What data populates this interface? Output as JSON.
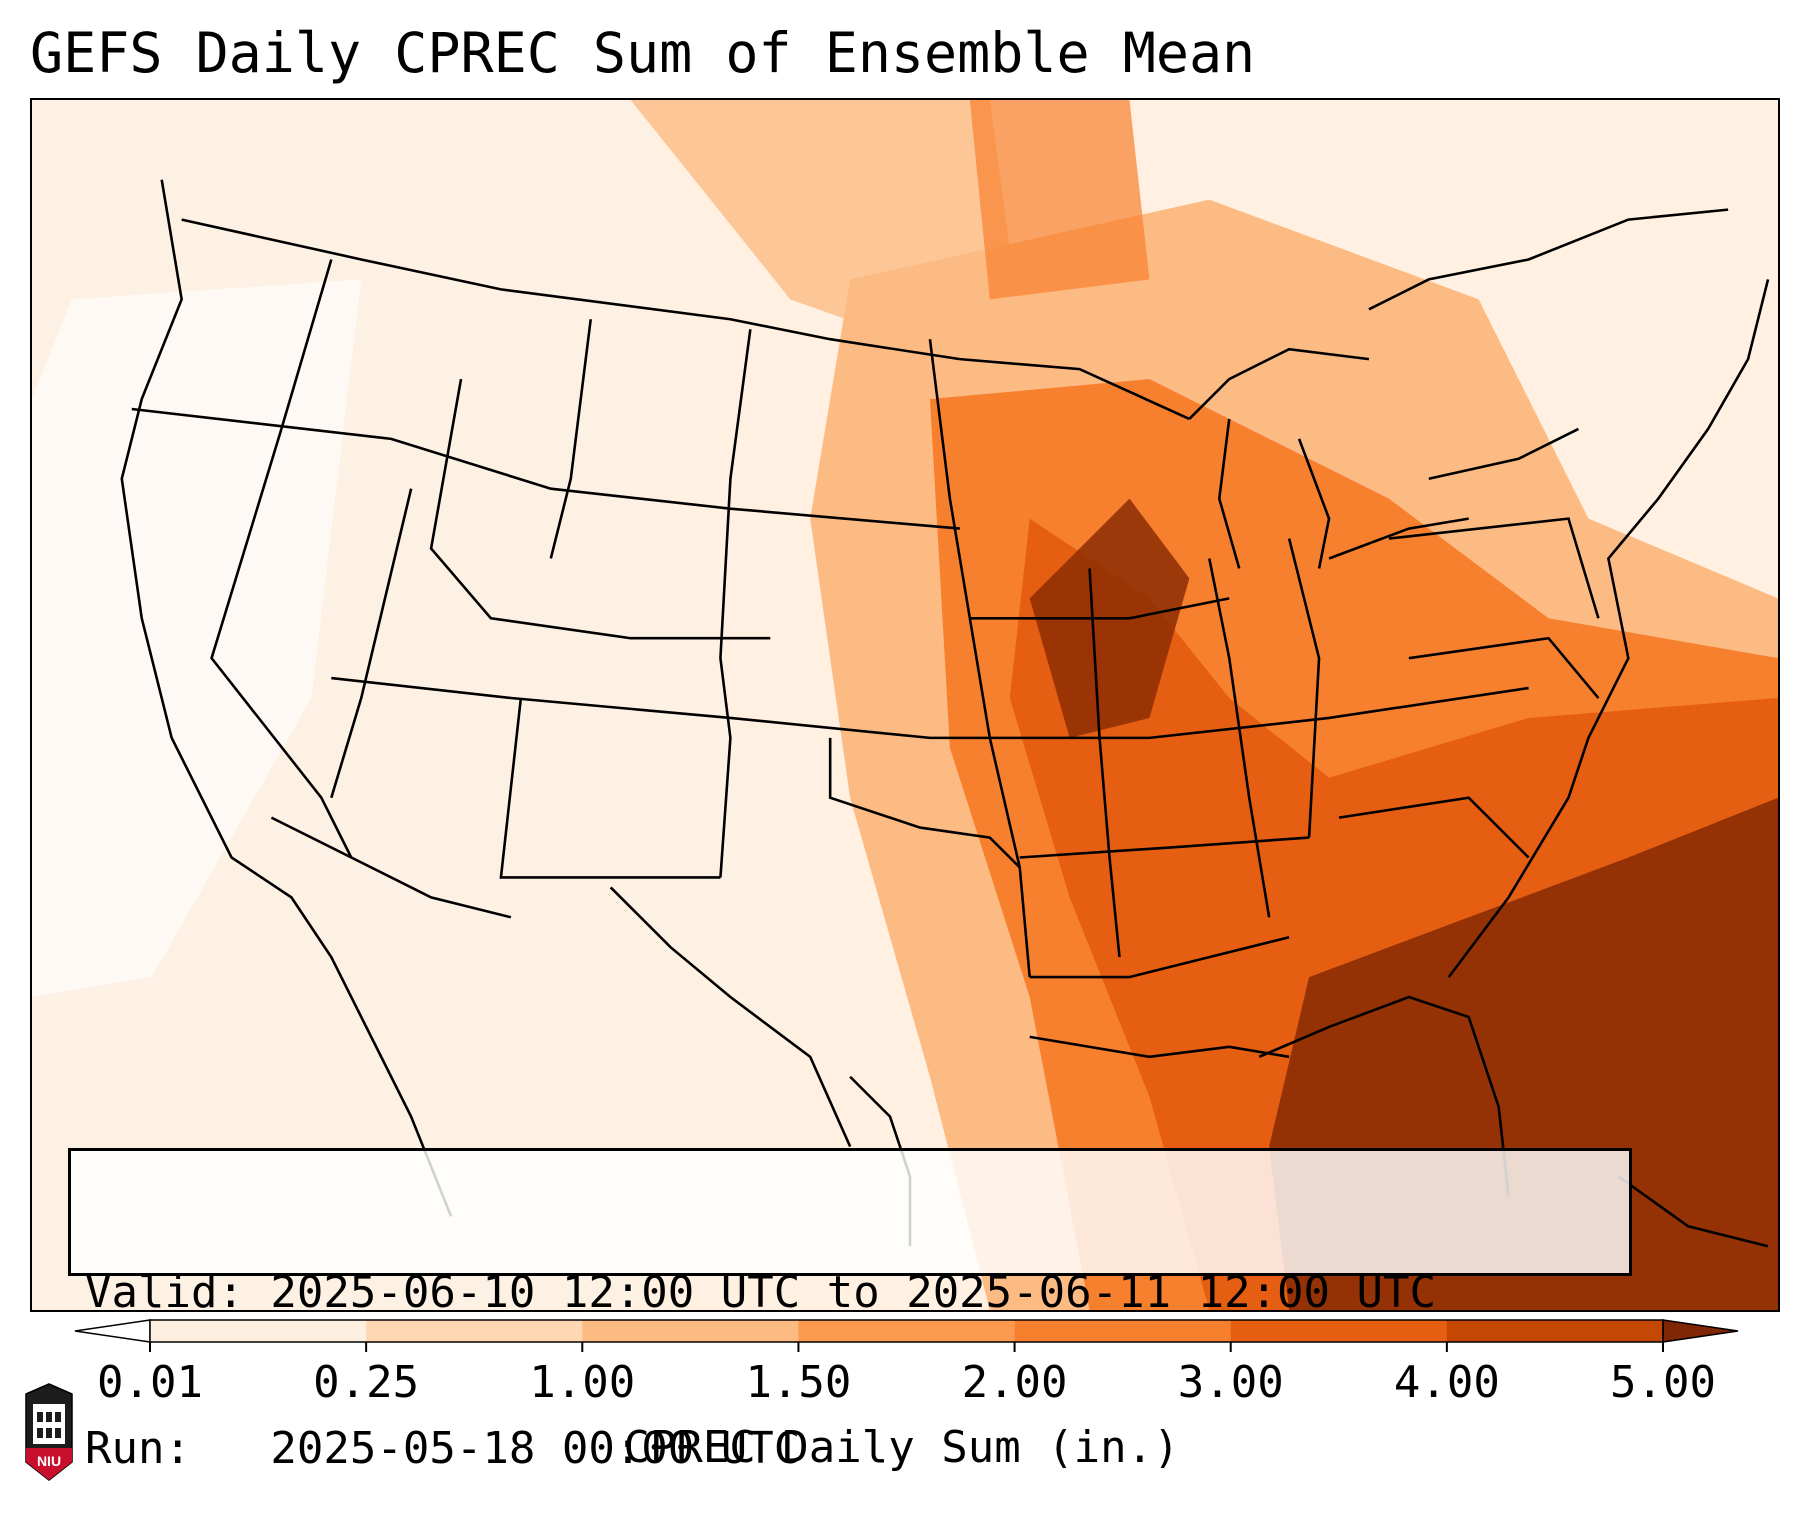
{
  "title": "GEFS Daily CPREC Sum of Ensemble Mean",
  "info": {
    "valid_line": "Valid: 2025-06-10 12:00 UTC to 2025-06-11 12:00 UTC",
    "run_line": "Run:   2025-05-18 00:00 UTC"
  },
  "colorbar": {
    "label": "CPREC Daily Sum (in.)",
    "ticks": [
      "0.01",
      "0.25",
      "1.00",
      "1.50",
      "2.00",
      "3.00",
      "4.00",
      "5.00"
    ],
    "colors": [
      "#fef0e1",
      "#fdd8b2",
      "#fdbb84",
      "#fc9b4f",
      "#f7802e",
      "#e65e12",
      "#c44704",
      "#8c2d04"
    ],
    "under_color": "#ffffff",
    "over_color": "#7f2704"
  },
  "logo": {
    "text": "NIU",
    "name": "niu-logo"
  }
}
